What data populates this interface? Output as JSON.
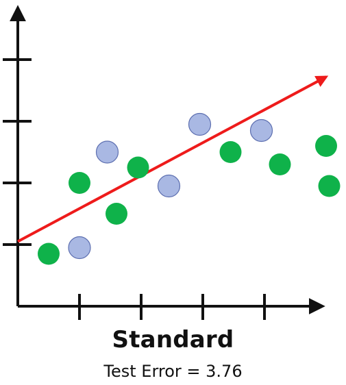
{
  "chart_data": {
    "type": "scatter",
    "title": "Standard",
    "subtitle": "Test Error = 3.76",
    "xlabel": "",
    "ylabel": "",
    "xlim": [
      0,
      5
    ],
    "ylim": [
      0,
      4
    ],
    "x_ticks": [
      1,
      2,
      3,
      4
    ],
    "y_ticks": [
      1,
      2,
      3,
      4
    ],
    "tick_labels_shown": false,
    "grid": false,
    "legend": "none",
    "colors": {
      "green_points": "#0fb24a",
      "blue_points": "#a9b8e3",
      "blue_stroke": "#5d6fb0",
      "fit_line": "#ee1b1b",
      "axes": "#111111"
    },
    "series": [
      {
        "color_key": "green_points",
        "points": [
          {
            "x": 0.5,
            "y": 0.85
          },
          {
            "x": 1.0,
            "y": 2.0
          },
          {
            "x": 1.6,
            "y": 1.5
          },
          {
            "x": 1.95,
            "y": 2.25
          },
          {
            "x": 3.45,
            "y": 2.5
          },
          {
            "x": 4.25,
            "y": 2.3
          },
          {
            "x": 5.0,
            "y": 2.6
          },
          {
            "x": 5.05,
            "y": 1.95
          }
        ]
      },
      {
        "color_key": "blue_points",
        "points": [
          {
            "x": 1.0,
            "y": 0.95
          },
          {
            "x": 1.45,
            "y": 2.5
          },
          {
            "x": 2.45,
            "y": 1.95
          },
          {
            "x": 2.95,
            "y": 2.95
          },
          {
            "x": 3.95,
            "y": 2.85
          }
        ]
      }
    ],
    "fit_line": {
      "color_key": "fit_line",
      "x": [
        0,
        5
      ],
      "y": [
        1.05,
        3.72
      ]
    }
  }
}
